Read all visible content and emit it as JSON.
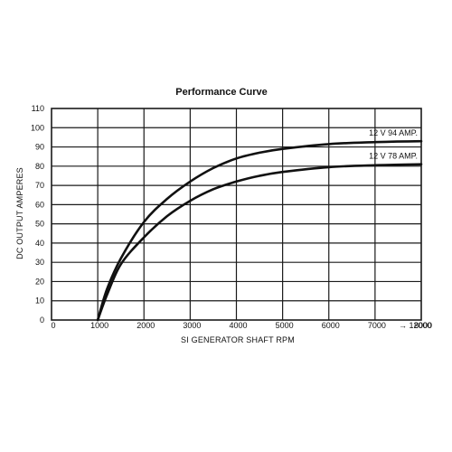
{
  "chart_data": {
    "type": "line",
    "title": "Performance Curve",
    "xlabel": "SI GENERATOR SHAFT RPM",
    "ylabel": "DC OUTPUT AMPERES",
    "xlim": [
      0,
      8000
    ],
    "ylim": [
      0,
      110
    ],
    "x_ticks": [
      "0",
      "1000",
      "2000",
      "3000",
      "4000",
      "5000",
      "6000",
      "7000",
      "8000"
    ],
    "x_tick_extra": "→ 12000",
    "y_ticks": [
      "0",
      "10",
      "20",
      "30",
      "40",
      "50",
      "60",
      "70",
      "80",
      "90",
      "100",
      "110"
    ],
    "grid": true,
    "series": [
      {
        "name": "12 V   94 AMP.",
        "x": [
          1000,
          1200,
          1500,
          2000,
          2500,
          3000,
          3500,
          4000,
          4500,
          5000,
          6000,
          7000,
          8000
        ],
        "y": [
          0,
          16,
          32,
          51,
          63,
          72,
          79,
          84,
          87,
          89,
          91.5,
          92.5,
          93
        ]
      },
      {
        "name": "12 V   78 AMP.",
        "x": [
          1000,
          1200,
          1500,
          2000,
          2500,
          3000,
          3500,
          4000,
          4500,
          5000,
          6000,
          7000,
          8000
        ],
        "y": [
          0,
          13,
          29,
          43,
          54,
          62,
          68,
          72,
          75,
          77,
          79.5,
          80.5,
          81
        ]
      }
    ]
  }
}
